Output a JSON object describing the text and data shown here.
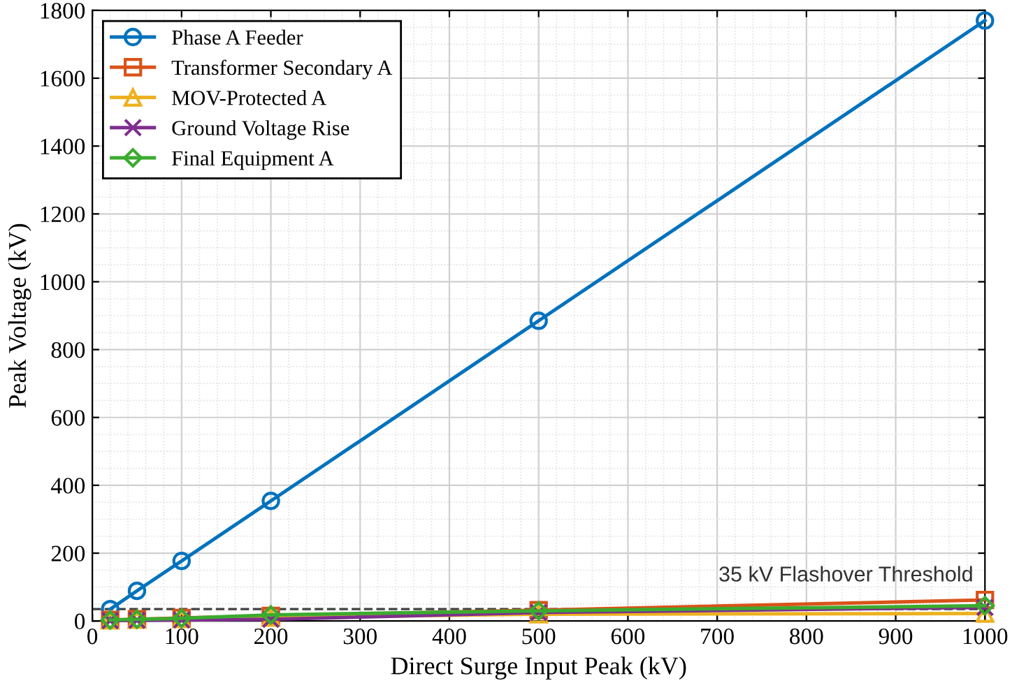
{
  "chart_data": {
    "type": "line",
    "xlabel": "Direct Surge Input Peak (kV)",
    "ylabel": "Peak Voltage (kV)",
    "x": [
      20,
      50,
      100,
      200,
      500,
      1000
    ],
    "series": [
      {
        "name": "Phase A Feeder",
        "color": "#0072bd",
        "values": [
          35,
          89,
          177,
          354,
          885,
          1770
        ],
        "marker": "circle"
      },
      {
        "name": "Transformer Secondary A",
        "color": "#d95319",
        "values": [
          3,
          5,
          9,
          15,
          32,
          62
        ],
        "marker": "square"
      },
      {
        "name": "MOV-Protected A",
        "color": "#edb120",
        "values": [
          2,
          4,
          6,
          10,
          20,
          22
        ],
        "marker": "triangle"
      },
      {
        "name": "Ground Voltage Rise",
        "color": "#7e2f8e",
        "values": [
          1,
          2,
          3,
          5,
          25,
          40
        ],
        "marker": "cross"
      },
      {
        "name": "Final Equipment A",
        "color": "#3bab2f",
        "values": [
          3,
          5,
          8,
          18,
          30,
          45
        ],
        "marker": "diamond"
      }
    ],
    "xlim": [
      0,
      1000
    ],
    "xticks": [
      0,
      100,
      200,
      300,
      400,
      500,
      600,
      700,
      800,
      900,
      1000
    ],
    "ylim": [
      0,
      1800
    ],
    "yticks": [
      0,
      200,
      400,
      600,
      800,
      1000,
      1200,
      1400,
      1600,
      1800
    ],
    "grid": true,
    "legend": "top left",
    "line_style": "solid",
    "ref_lines": [
      {
        "axis": "y",
        "value": 35,
        "label": "35 kV Flashover Threshold",
        "color": "#404040",
        "line_style": "dashed"
      }
    ]
  }
}
